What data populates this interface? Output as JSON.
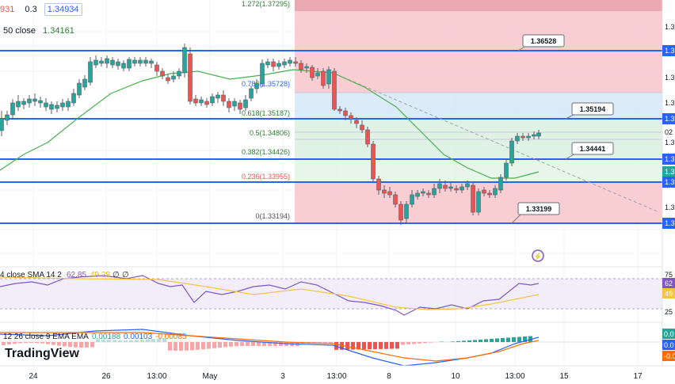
{
  "header": {
    "ohlc_values": [
      "931",
      "0.3",
      "1.34934"
    ],
    "ma_label": "50 close",
    "ma_value": "1.34161",
    "top_partial": "1.272(1.37295)"
  },
  "fib_levels": [
    {
      "ratio": "0.786",
      "price": "1.35728",
      "label": "0.786(1.35728)"
    },
    {
      "ratio": "0.618",
      "price": "1.35187",
      "label": "0.618(1.35187)"
    },
    {
      "ratio": "0.5",
      "price": "1.34806",
      "label": "0.5(1.34806)"
    },
    {
      "ratio": "0.382",
      "price": "1.34426",
      "label": "0.382(1.34426)"
    },
    {
      "ratio": "0.236",
      "price": "1.33955",
      "label": "0.236(1.33955)"
    },
    {
      "ratio": "0",
      "price": "1.33194",
      "label": "0(1.33194)"
    }
  ],
  "callouts": [
    "1.36528",
    "1.35194",
    "1.34441",
    "1.33199"
  ],
  "rsi": {
    "label": "4 close SMA 14 2",
    "v1": "62.85",
    "v2": "49.28",
    "v3": "∅",
    "v4": "∅"
  },
  "rsi_axis": [
    "75",
    "62",
    "49",
    "25"
  ],
  "macd": {
    "label": "12 26 close 9 EMA EMA",
    "v1": "0.00188",
    "v2": "0.00103",
    "v3": "-0.00085"
  },
  "macd_axis": [
    "0.0",
    "0.0",
    "-0.0"
  ],
  "x_axis": [
    "24",
    "26",
    "13:00",
    "May",
    "3",
    "13:00",
    "8",
    "10",
    "13:00",
    "15",
    "17"
  ],
  "y_axis_partial": [
    "1.3",
    "1.3",
    "1.3",
    "1.3",
    "1.3",
    "02",
    "1.3",
    "1.3",
    "1.3",
    "1.3",
    "1.3",
    "1.3"
  ],
  "brand": "TradingView",
  "colors": {
    "candle_up": "#26a69a",
    "candle_down": "#ef5350",
    "support_line": "#2962ff",
    "ma_line": "#4caf50",
    "fib_red": "#f7c5cb",
    "fib_blue": "#d6e7f7",
    "fib_green": "#dbefe0",
    "rsi_line": "#7e57c2",
    "rsi_ma": "#f5c542"
  }
}
